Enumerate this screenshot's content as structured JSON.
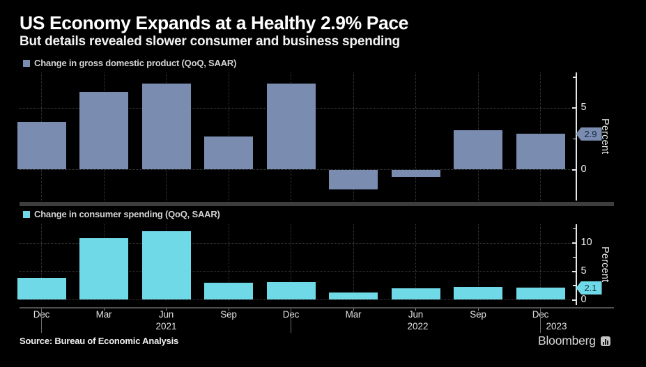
{
  "header": {
    "title": "US Economy Expands at a Healthy 2.9% Pace",
    "subtitle": "But details revealed slower consumer and business spending"
  },
  "x_axis": {
    "categories": [
      "Dec",
      "Mar",
      "Jun",
      "Sep",
      "Dec",
      "Mar",
      "Jun",
      "Sep",
      "Dec"
    ],
    "years": [
      {
        "label": "2021",
        "index": 2,
        "dx": 0
      },
      {
        "label": "2022",
        "index": 6,
        "dx": 3
      },
      {
        "label": "2023",
        "index": 8,
        "dx": 23
      }
    ],
    "year_tick_indices": [
      0,
      4,
      8
    ]
  },
  "chart_data": [
    {
      "type": "bar",
      "legend": "Change in gross domestic product (QoQ, SAAR)",
      "ylabel": "Percent",
      "categories": [
        "Dec 2020",
        "Mar 2021",
        "Jun 2021",
        "Sep 2021",
        "Dec 2021",
        "Mar 2022",
        "Jun 2022",
        "Sep 2022",
        "Dec 2022"
      ],
      "values": [
        3.9,
        6.3,
        7.0,
        2.7,
        7.0,
        -1.6,
        -0.6,
        3.2,
        2.9
      ],
      "ylim": [
        -2.8,
        7.9
      ],
      "grid_values": [
        0,
        5
      ],
      "tick_labels": [
        0,
        5
      ],
      "minor_ticks": [
        2.5,
        7.5
      ],
      "badge": {
        "label": "2.9",
        "value": 2.9
      },
      "color": "#7a8cb0",
      "badge_text_color": "#13253d",
      "legend_position": "top-left",
      "grid": "dotted"
    },
    {
      "type": "bar",
      "legend": "Change in consumer spending (QoQ, SAAR)",
      "ylabel": "Percent",
      "categories": [
        "Dec 2020",
        "Mar 2021",
        "Jun 2021",
        "Sep 2021",
        "Dec 2021",
        "Mar 2022",
        "Jun 2022",
        "Sep 2022",
        "Dec 2022"
      ],
      "values": [
        3.9,
        10.8,
        12.1,
        3.0,
        3.1,
        1.3,
        2.0,
        2.3,
        2.1
      ],
      "ylim": [
        0,
        13.3
      ],
      "grid_values": [
        0,
        5,
        10
      ],
      "tick_labels": [
        0,
        5,
        10
      ],
      "minor_ticks": [
        2.5,
        7.5,
        12.5
      ],
      "badge": {
        "label": "2.1",
        "value": 2.1
      },
      "color": "#70d9e8",
      "badge_text_color": "#0b3c4a",
      "legend_position": "top-left",
      "grid": "dotted"
    }
  ],
  "footer": {
    "source": "Source: Bureau of Economic Analysis",
    "brand": "Bloomberg"
  }
}
